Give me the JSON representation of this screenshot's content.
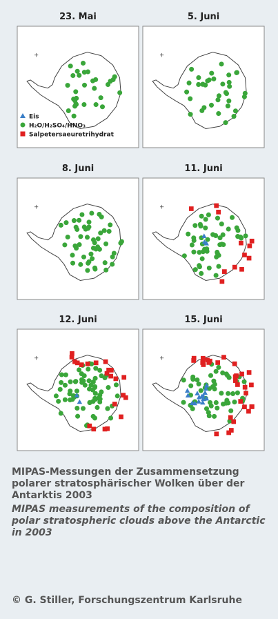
{
  "panels": [
    {
      "title": "23. Mai"
    },
    {
      "title": "5. Juni"
    },
    {
      "title": "8. Juni"
    },
    {
      "title": "11. Juni"
    },
    {
      "title": "12. Juni"
    },
    {
      "title": "15. Juni"
    }
  ],
  "legend": [
    {
      "label": "Eis",
      "color": "#3a7fc8"
    },
    {
      "label": "H₂O/H₂SO₄/HNO₃",
      "color": "#3aa63a"
    },
    {
      "label": "Salpetersaeuretrihydrat",
      "color": "#e02020"
    }
  ],
  "caption": {
    "german": "MIPAS-Messungen der Zusammensetzung polarer stratosphärischer Wolken über der Antarktis 2003",
    "english": "MIPAS measurements of the composition of polar stratospheric clouds above the Antarctic in 2003"
  },
  "credit": "© G. Stiller, Forschungszentrum Karlsruhe"
}
